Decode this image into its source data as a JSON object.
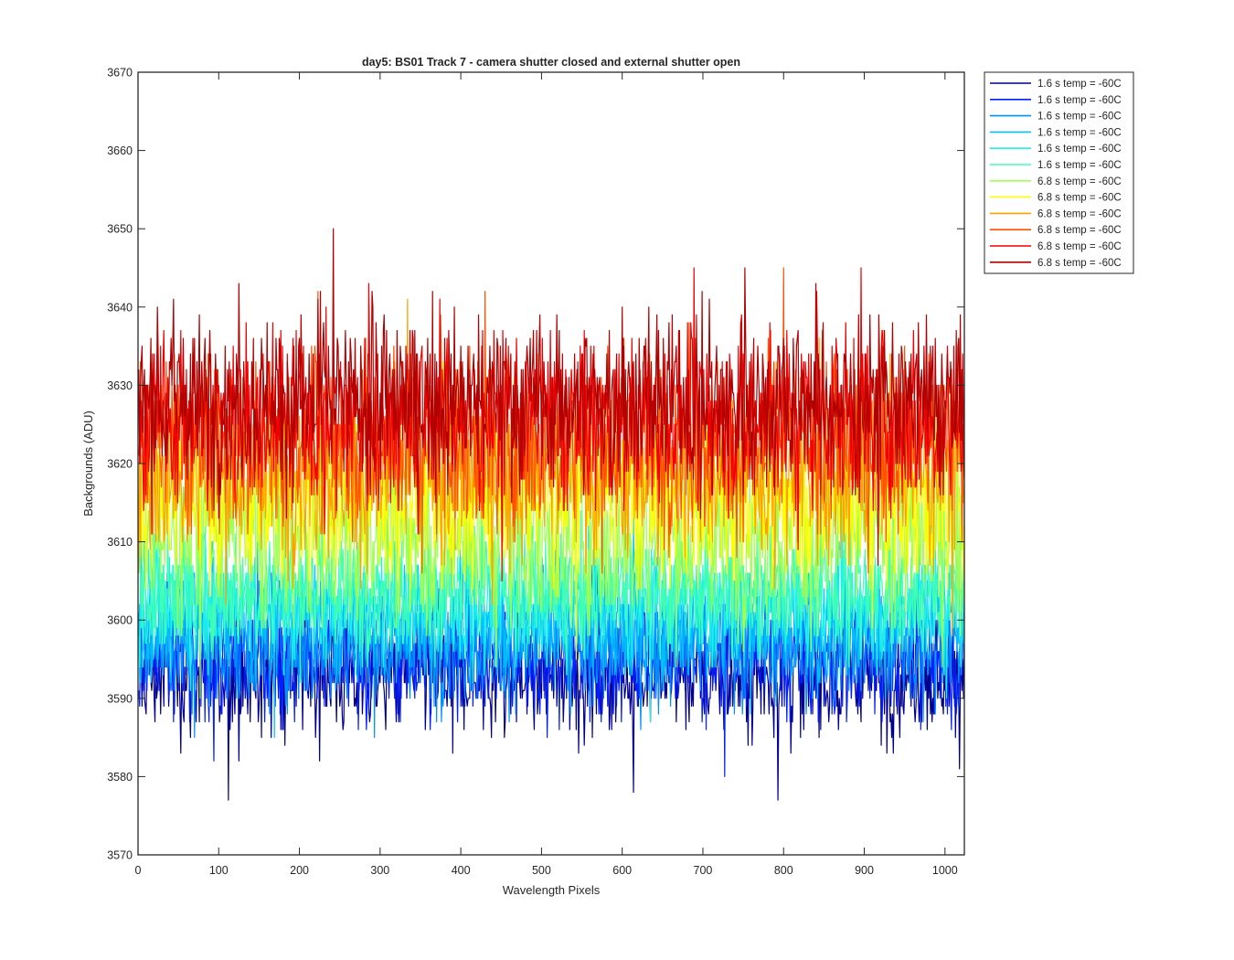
{
  "chart_data": {
    "type": "line",
    "title": "day5: BS01  Track 7 - camera shutter closed and external shutter open",
    "xlabel": "Wavelength Pixels",
    "ylabel": "Backgrounds (ADU)",
    "xlim": [
      0,
      1024
    ],
    "ylim": [
      3570,
      3670
    ],
    "xticks": [
      0,
      100,
      200,
      300,
      400,
      500,
      600,
      700,
      800,
      900,
      1000
    ],
    "yticks": [
      3570,
      3580,
      3590,
      3600,
      3610,
      3620,
      3630,
      3640,
      3650,
      3660,
      3670
    ],
    "x": "1-1024",
    "grid": false,
    "legend_position": "outside-top-right",
    "series": [
      {
        "name": "1.6 s temp = -60C",
        "color": "#00008f",
        "mean": 3593,
        "sd": 3.8
      },
      {
        "name": "1.6 s temp = -60C",
        "color": "#0020ff",
        "mean": 3595,
        "sd": 3.8
      },
      {
        "name": "1.6 s temp = -60C",
        "color": "#0090ff",
        "mean": 3597,
        "sd": 3.8
      },
      {
        "name": "1.6 s temp = -60C",
        "color": "#00c0ff",
        "mean": 3600,
        "sd": 3.8
      },
      {
        "name": "1.6 s temp = -60C",
        "color": "#20f0e8",
        "mean": 3602,
        "sd": 3.8
      },
      {
        "name": "1.6 s temp = -60C",
        "color": "#40ffb0",
        "mean": 3604,
        "sd": 3.8
      },
      {
        "name": "6.8 s temp = -60C",
        "color": "#a0ff50",
        "mean": 3611,
        "sd": 5.5
      },
      {
        "name": "6.8 s temp = -60C",
        "color": "#ffff00",
        "mean": 3616,
        "sd": 5.5
      },
      {
        "name": "6.8 s temp = -60C",
        "color": "#ffa000",
        "mean": 3619,
        "sd": 5.5
      },
      {
        "name": "6.8 s temp = -60C",
        "color": "#ff5000",
        "mean": 3623,
        "sd": 5.5
      },
      {
        "name": "6.8 s temp = -60C",
        "color": "#f00000",
        "mean": 3626,
        "sd": 5.5
      },
      {
        "name": "6.8 s temp = -60C",
        "color": "#b00000",
        "mean": 3628,
        "sd": 5.5
      }
    ]
  }
}
